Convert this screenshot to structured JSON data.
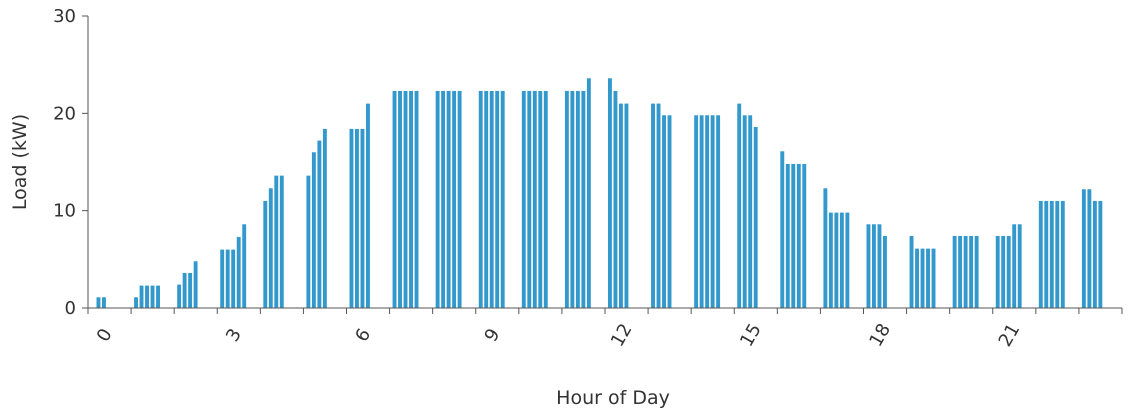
{
  "chart_data": {
    "type": "bar",
    "xlabel": "Hour of Day",
    "ylabel": "Load (kW)",
    "ylim": [
      0,
      30
    ],
    "y_ticks": [
      0,
      10,
      20,
      30
    ],
    "x_range": [
      -0.5,
      23.5
    ],
    "x_tick_labels": [
      "0",
      "3",
      "6",
      "9",
      "12",
      "15",
      "18",
      "21"
    ],
    "bar_color": "#3399cc",
    "grid": false,
    "legend": "none",
    "hours": [
      {
        "hour": 0,
        "values": [
          0,
          1.1,
          1.1
        ]
      },
      {
        "hour": 1,
        "values": [
          1.1,
          2.3,
          2.3,
          2.3,
          2.3
        ]
      },
      {
        "hour": 2,
        "values": [
          2.4,
          3.6,
          3.6,
          4.8
        ]
      },
      {
        "hour": 3,
        "values": [
          6.0,
          6.0,
          6.0,
          7.3,
          8.6
        ]
      },
      {
        "hour": 4,
        "values": [
          11.0,
          12.3,
          13.6,
          13.6
        ]
      },
      {
        "hour": 5,
        "values": [
          13.6,
          16.0,
          17.2,
          18.4
        ]
      },
      {
        "hour": 6,
        "values": [
          18.4,
          18.4,
          18.4,
          21.0
        ]
      },
      {
        "hour": 7,
        "values": [
          22.3,
          22.3,
          22.3,
          22.3,
          22.3
        ]
      },
      {
        "hour": 8,
        "values": [
          22.3,
          22.3,
          22.3,
          22.3,
          22.3
        ]
      },
      {
        "hour": 9,
        "values": [
          22.3,
          22.3,
          22.3,
          22.3,
          22.3
        ]
      },
      {
        "hour": 10,
        "values": [
          22.3,
          22.3,
          22.3,
          22.3,
          22.3
        ]
      },
      {
        "hour": 11,
        "values": [
          22.3,
          22.3,
          22.3,
          22.3,
          23.6
        ]
      },
      {
        "hour": 12,
        "values": [
          23.6,
          22.3,
          21.0,
          21.0
        ]
      },
      {
        "hour": 13,
        "values": [
          21.0,
          21.0,
          19.8,
          19.8
        ]
      },
      {
        "hour": 14,
        "values": [
          19.8,
          19.8,
          19.8,
          19.8,
          19.8
        ]
      },
      {
        "hour": 15,
        "values": [
          21.0,
          19.8,
          19.8,
          18.6
        ]
      },
      {
        "hour": 16,
        "values": [
          16.1,
          14.8,
          14.8,
          14.8,
          14.8
        ]
      },
      {
        "hour": 17,
        "values": [
          12.3,
          9.8,
          9.8,
          9.8,
          9.8
        ]
      },
      {
        "hour": 18,
        "values": [
          8.6,
          8.6,
          8.6,
          7.4
        ]
      },
      {
        "hour": 19,
        "values": [
          7.4,
          6.1,
          6.1,
          6.1,
          6.1
        ]
      },
      {
        "hour": 20,
        "values": [
          7.4,
          7.4,
          7.4,
          7.4,
          7.4
        ]
      },
      {
        "hour": 21,
        "values": [
          7.4,
          7.4,
          7.4,
          8.6,
          8.6
        ]
      },
      {
        "hour": 22,
        "values": [
          11.0,
          11.0,
          11.0,
          11.0,
          11.0
        ]
      },
      {
        "hour": 23,
        "values": [
          12.2,
          12.2,
          11.0,
          11.0
        ]
      }
    ]
  }
}
